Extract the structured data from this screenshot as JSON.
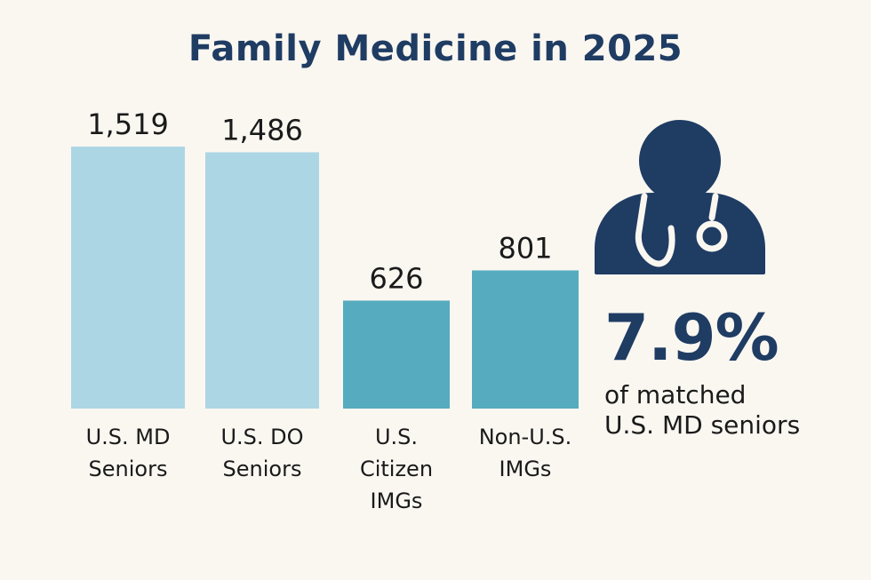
{
  "title": "Family Medicine in 2025",
  "chart_data": {
    "type": "bar",
    "title": "Family Medicine in 2025",
    "categories": [
      [
        "U.S. MD",
        "Seniors"
      ],
      [
        "U.S. DO",
        "Seniors"
      ],
      [
        "U.S.",
        "Citizen",
        "IMGs"
      ],
      [
        "Non-U.S.",
        "IMGs"
      ]
    ],
    "values": [
      1519,
      1486,
      626,
      801
    ],
    "value_labels": [
      "1,519",
      "1,486",
      "626",
      "801"
    ],
    "colors": [
      "#ADD6E5",
      "#ADD6E5",
      "#56ABBE",
      "#56ABBE"
    ],
    "xlabel": "",
    "ylabel": "",
    "grid": false
  },
  "stat": {
    "value": "7.9%",
    "caption_lines": [
      "of matched",
      "U.S. MD seniors"
    ],
    "color": "#1F3C63"
  },
  "icon": {
    "name": "doctor-stethoscope-icon",
    "color": "#1F3C63"
  }
}
